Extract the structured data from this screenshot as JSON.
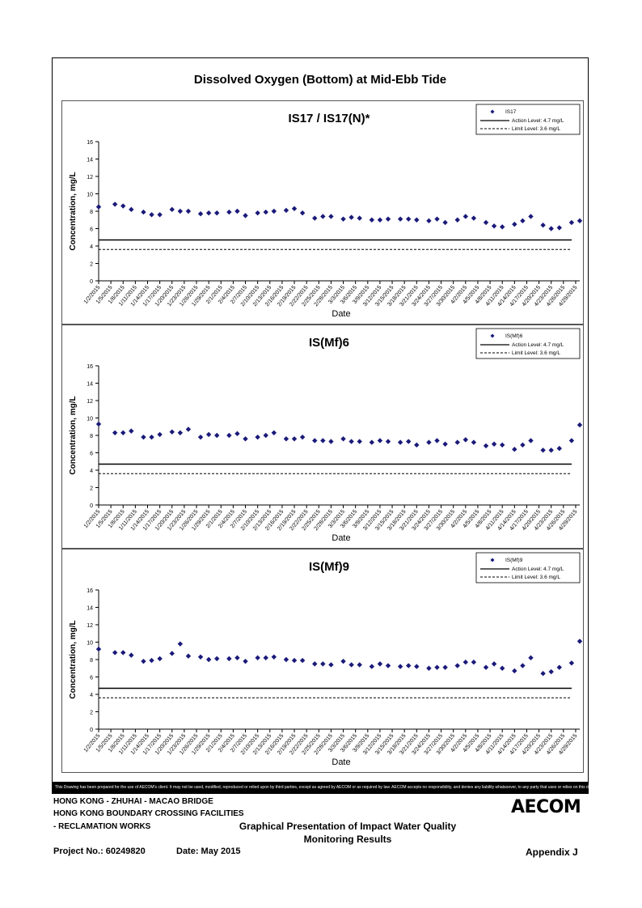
{
  "page_title": "Dissolved Oxygen (Bottom) at Mid-Ebb Tide",
  "colors": {
    "marker": "#1a1a7a",
    "action_line": "#000000",
    "limit_line": "#000000"
  },
  "chart_data": [
    {
      "type": "scatter",
      "title": "IS17 / IS17(N)*",
      "xlabel": "Date",
      "ylabel": "Concentration, mg/L",
      "ylim": [
        0,
        16
      ],
      "yticks": [
        0,
        2,
        4,
        6,
        8,
        10,
        12,
        14,
        16
      ],
      "xticks": [
        "1/2/2015",
        "1/5/2015",
        "1/8/2015",
        "1/11/2015",
        "1/14/2015",
        "1/17/2015",
        "1/20/2015",
        "1/23/2015",
        "1/26/2015",
        "1/29/2015",
        "2/1/2015",
        "2/4/2015",
        "2/7/2015",
        "2/10/2015",
        "2/13/2015",
        "2/16/2015",
        "2/19/2015",
        "2/22/2015",
        "2/25/2015",
        "2/28/2015",
        "3/3/2015",
        "3/6/2015",
        "3/9/2015",
        "3/12/2015",
        "3/15/2015",
        "3/18/2015",
        "3/21/2015",
        "3/24/2015",
        "3/27/2015",
        "3/30/2015",
        "4/2/2015",
        "4/5/2015",
        "4/8/2015",
        "4/11/2015",
        "4/14/2015",
        "4/17/2015",
        "4/20/2015",
        "4/23/2015",
        "4/26/2015",
        "4/29/2015"
      ],
      "legend": [
        "IS17",
        "Action Level: 4.7 mg/L",
        "Limit Level: 3.6 mg/L"
      ],
      "legend_position": "top-right",
      "grid": false,
      "action_level": 4.7,
      "limit_level": 3.6,
      "series": [
        {
          "name": "IS17",
          "x": [
            "1/2/2015",
            "1/6/2015",
            "1/8/2015",
            "1/10/2015",
            "1/13/2015",
            "1/15/2015",
            "1/17/2015",
            "1/20/2015",
            "1/22/2015",
            "1/24/2015",
            "1/27/2015",
            "1/29/2015",
            "1/31/2015",
            "2/3/2015",
            "2/5/2015",
            "2/7/2015",
            "2/10/2015",
            "2/12/2015",
            "2/14/2015",
            "2/17/2015",
            "2/19/2015",
            "2/21/2015",
            "2/24/2015",
            "2/26/2015",
            "2/28/2015",
            "3/3/2015",
            "3/5/2015",
            "3/7/2015",
            "3/10/2015",
            "3/12/2015",
            "3/14/2015",
            "3/17/2015",
            "3/19/2015",
            "3/21/2015",
            "3/24/2015",
            "3/26/2015",
            "3/28/2015",
            "3/31/2015",
            "4/2/2015",
            "4/4/2015",
            "4/7/2015",
            "4/9/2015",
            "4/11/2015",
            "4/14/2015",
            "4/16/2015",
            "4/18/2015",
            "4/21/2015",
            "4/23/2015",
            "4/25/2015",
            "4/28/2015",
            "4/30/2015"
          ],
          "y": [
            8.5,
            8.8,
            8.6,
            8.2,
            7.9,
            7.6,
            7.6,
            8.2,
            8.0,
            8.0,
            7.7,
            7.8,
            7.8,
            7.9,
            8.0,
            7.5,
            7.8,
            7.9,
            8.0,
            8.1,
            8.3,
            7.8,
            7.2,
            7.4,
            7.4,
            7.1,
            7.3,
            7.2,
            7.0,
            7.0,
            7.1,
            7.1,
            7.1,
            7.0,
            6.9,
            7.1,
            6.7,
            7.0,
            7.4,
            7.2,
            6.7,
            6.3,
            6.2,
            6.5,
            6.9,
            7.4,
            6.4,
            6.0,
            6.1,
            6.7,
            6.9
          ]
        }
      ]
    },
    {
      "type": "scatter",
      "title": "IS(Mf)6",
      "xlabel": "Date",
      "ylabel": "Concentration, mg/L",
      "ylim": [
        0,
        16
      ],
      "yticks": [
        0,
        2,
        4,
        6,
        8,
        10,
        12,
        14,
        16
      ],
      "xticks": [
        "1/2/2015",
        "1/5/2015",
        "1/8/2015",
        "1/11/2015",
        "1/14/2015",
        "1/17/2015",
        "1/20/2015",
        "1/23/2015",
        "1/26/2015",
        "1/29/2015",
        "2/1/2015",
        "2/4/2015",
        "2/7/2015",
        "2/10/2015",
        "2/13/2015",
        "2/16/2015",
        "2/19/2015",
        "2/22/2015",
        "2/25/2015",
        "2/28/2015",
        "3/3/2015",
        "3/6/2015",
        "3/9/2015",
        "3/12/2015",
        "3/15/2015",
        "3/18/2015",
        "3/21/2015",
        "3/24/2015",
        "3/27/2015",
        "3/30/2015",
        "4/2/2015",
        "4/5/2015",
        "4/8/2015",
        "4/11/2015",
        "4/14/2015",
        "4/17/2015",
        "4/20/2015",
        "4/23/2015",
        "4/26/2015",
        "4/29/2015"
      ],
      "legend": [
        "IS(Mf)6",
        "Action Level: 4.7 mg/L",
        "Limit Level: 3.6 mg/L"
      ],
      "legend_position": "top-right",
      "grid": false,
      "action_level": 4.7,
      "limit_level": 3.6,
      "series": [
        {
          "name": "IS(Mf)6",
          "x": [
            "1/2/2015",
            "1/6/2015",
            "1/8/2015",
            "1/10/2015",
            "1/13/2015",
            "1/15/2015",
            "1/17/2015",
            "1/20/2015",
            "1/22/2015",
            "1/24/2015",
            "1/27/2015",
            "1/29/2015",
            "1/31/2015",
            "2/3/2015",
            "2/5/2015",
            "2/7/2015",
            "2/10/2015",
            "2/12/2015",
            "2/14/2015",
            "2/17/2015",
            "2/19/2015",
            "2/21/2015",
            "2/24/2015",
            "2/26/2015",
            "2/28/2015",
            "3/3/2015",
            "3/5/2015",
            "3/7/2015",
            "3/10/2015",
            "3/12/2015",
            "3/14/2015",
            "3/17/2015",
            "3/19/2015",
            "3/21/2015",
            "3/24/2015",
            "3/26/2015",
            "3/28/2015",
            "3/31/2015",
            "4/2/2015",
            "4/4/2015",
            "4/7/2015",
            "4/9/2015",
            "4/11/2015",
            "4/14/2015",
            "4/16/2015",
            "4/18/2015",
            "4/21/2015",
            "4/23/2015",
            "4/25/2015",
            "4/28/2015",
            "4/30/2015"
          ],
          "y": [
            9.3,
            8.3,
            8.3,
            8.5,
            7.8,
            7.8,
            8.1,
            8.4,
            8.3,
            8.7,
            7.8,
            8.1,
            8.0,
            8.0,
            8.2,
            7.6,
            7.8,
            8.0,
            8.3,
            7.6,
            7.6,
            7.8,
            7.4,
            7.4,
            7.3,
            7.6,
            7.3,
            7.3,
            7.2,
            7.4,
            7.3,
            7.2,
            7.3,
            6.9,
            7.2,
            7.4,
            7.0,
            7.2,
            7.5,
            7.2,
            6.8,
            7.0,
            6.9,
            6.4,
            6.9,
            7.4,
            6.3,
            6.3,
            6.5,
            7.4,
            9.2
          ]
        }
      ]
    },
    {
      "type": "scatter",
      "title": "IS(Mf)9",
      "xlabel": "Date",
      "ylabel": "Concentration, mg/L",
      "ylim": [
        0,
        16
      ],
      "yticks": [
        0,
        2,
        4,
        6,
        8,
        10,
        12,
        14,
        16
      ],
      "xticks": [
        "1/2/2015",
        "1/5/2015",
        "1/8/2015",
        "1/11/2015",
        "1/14/2015",
        "1/17/2015",
        "1/20/2015",
        "1/23/2015",
        "1/26/2015",
        "1/29/2015",
        "2/1/2015",
        "2/4/2015",
        "2/7/2015",
        "2/10/2015",
        "2/13/2015",
        "2/16/2015",
        "2/19/2015",
        "2/22/2015",
        "2/25/2015",
        "2/28/2015",
        "3/3/2015",
        "3/6/2015",
        "3/9/2015",
        "3/12/2015",
        "3/15/2015",
        "3/18/2015",
        "3/21/2015",
        "3/24/2015",
        "3/27/2015",
        "3/30/2015",
        "4/2/2015",
        "4/5/2015",
        "4/8/2015",
        "4/11/2015",
        "4/14/2015",
        "4/17/2015",
        "4/20/2015",
        "4/23/2015",
        "4/26/2015",
        "4/29/2015"
      ],
      "legend": [
        "IS(Mf)9",
        "Action Level: 4.7 mg/L",
        "Limit Level: 3.6 mg/L"
      ],
      "legend_position": "top-right",
      "grid": false,
      "action_level": 4.7,
      "limit_level": 3.6,
      "series": [
        {
          "name": "IS(Mf)9",
          "x": [
            "1/2/2015",
            "1/6/2015",
            "1/8/2015",
            "1/10/2015",
            "1/13/2015",
            "1/15/2015",
            "1/17/2015",
            "1/20/2015",
            "1/22/2015",
            "1/24/2015",
            "1/27/2015",
            "1/29/2015",
            "1/31/2015",
            "2/3/2015",
            "2/5/2015",
            "2/7/2015",
            "2/10/2015",
            "2/12/2015",
            "2/14/2015",
            "2/17/2015",
            "2/19/2015",
            "2/21/2015",
            "2/24/2015",
            "2/26/2015",
            "2/28/2015",
            "3/3/2015",
            "3/5/2015",
            "3/7/2015",
            "3/10/2015",
            "3/12/2015",
            "3/14/2015",
            "3/17/2015",
            "3/19/2015",
            "3/21/2015",
            "3/24/2015",
            "3/26/2015",
            "3/28/2015",
            "3/31/2015",
            "4/2/2015",
            "4/4/2015",
            "4/7/2015",
            "4/9/2015",
            "4/11/2015",
            "4/14/2015",
            "4/16/2015",
            "4/18/2015",
            "4/21/2015",
            "4/23/2015",
            "4/25/2015",
            "4/28/2015",
            "4/30/2015"
          ],
          "y": [
            9.2,
            8.8,
            8.8,
            8.5,
            7.8,
            7.9,
            8.1,
            8.7,
            9.8,
            8.4,
            8.3,
            8.0,
            8.1,
            8.1,
            8.2,
            7.8,
            8.2,
            8.2,
            8.3,
            8.0,
            7.9,
            7.9,
            7.5,
            7.5,
            7.4,
            7.8,
            7.4,
            7.4,
            7.2,
            7.5,
            7.3,
            7.2,
            7.3,
            7.2,
            7.0,
            7.1,
            7.1,
            7.3,
            7.7,
            7.7,
            7.1,
            7.5,
            7.0,
            6.7,
            7.3,
            8.2,
            6.4,
            6.6,
            7.1,
            7.6,
            10.1
          ]
        }
      ]
    }
  ],
  "disclaimer": "This Drawing has been prepared for the use of AECOM's client. It may not be used, modified, reproduced or relied upon by third parties, except as agreed by AECOM or as required by law. AECOM accepts no responsibility, and denies any liability whatsoever, to any party that uses or relies on this drawing without AECOM's express written consent.",
  "footer": {
    "project_line1": "HONG KONG - ZHUHAI - MACAO BRIDGE",
    "project_line2": "HONG KONG BOUNDARY CROSSING FACILITIES",
    "project_line3": "- RECLAMATION WORKS",
    "project_no": "Project No.: 60249820",
    "date": "Date: May 2015",
    "center_line1": "Graphical Presentation of Impact Water Quality",
    "center_line2": "Monitoring Results",
    "logo_text": "AECOM",
    "appendix": "Appendix J"
  }
}
